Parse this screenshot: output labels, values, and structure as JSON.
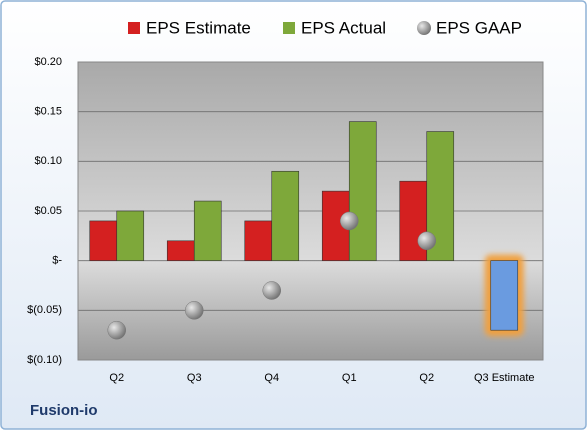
{
  "chart_data": {
    "type": "bar",
    "title": "Fusion-io",
    "categories": [
      "Q2",
      "Q3",
      "Q4",
      "Q1",
      "Q2",
      "Q3 Estimate"
    ],
    "series": [
      {
        "name": "EPS Estimate",
        "color": "#d42020",
        "values": [
          0.04,
          0.02,
          0.04,
          0.07,
          0.08,
          -0.07
        ],
        "point_colors": [
          "#d42020",
          "#d42020",
          "#d42020",
          "#d42020",
          "#d42020",
          "#6a9be0"
        ]
      },
      {
        "name": "EPS Actual",
        "color": "#7ea83a",
        "values": [
          0.05,
          0.06,
          0.09,
          0.14,
          0.13,
          null
        ]
      },
      {
        "name": "EPS GAAP",
        "color": "#9a9a9a",
        "marker": "sphere",
        "values": [
          -0.07,
          -0.05,
          -0.03,
          0.04,
          0.02,
          null
        ]
      }
    ],
    "ylim": [
      -0.1,
      0.2
    ],
    "yticks": [
      {
        "value": -0.1,
        "label": "$(0.10)"
      },
      {
        "value": -0.05,
        "label": "$(0.05)"
      },
      {
        "value": 0,
        "label": "$-"
      },
      {
        "value": 0.05,
        "label": "$0.05"
      },
      {
        "value": 0.1,
        "label": "$0.10"
      },
      {
        "value": 0.15,
        "label": "$0.15"
      },
      {
        "value": 0.2,
        "label": "$0.20"
      }
    ],
    "grid": true,
    "legend": "top"
  }
}
